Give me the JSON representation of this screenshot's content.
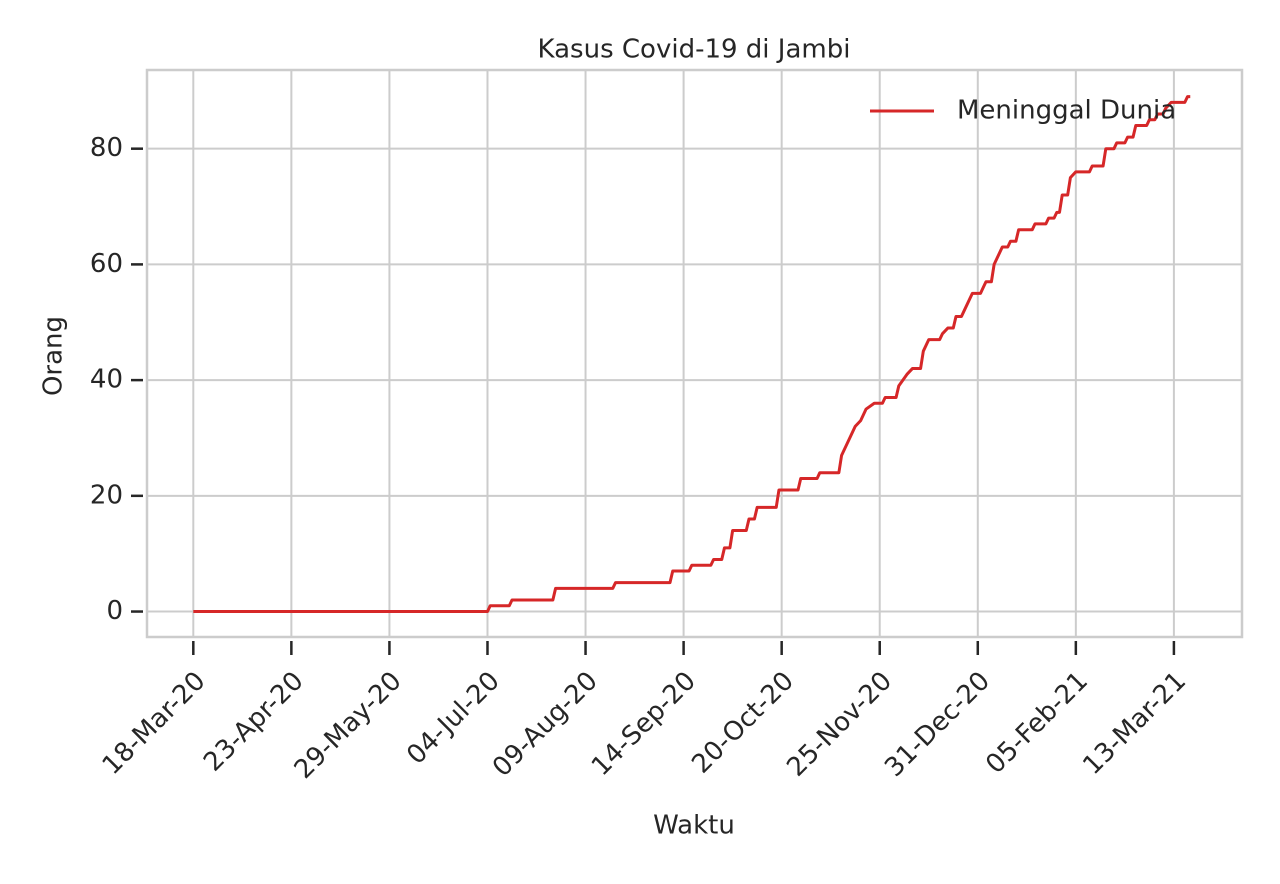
{
  "chart_data": {
    "type": "line",
    "title": "Kasus Covid-19 di Jambi",
    "xlabel": "Waktu",
    "ylabel": "Orang",
    "x": [
      "2020-03-18",
      "2020-07-04",
      "2020-07-05",
      "2020-07-12",
      "2020-07-13",
      "2020-07-28",
      "2020-07-29",
      "2020-08-19",
      "2020-08-20",
      "2020-09-09",
      "2020-09-10",
      "2020-09-16",
      "2020-09-17",
      "2020-09-24",
      "2020-09-25",
      "2020-09-28",
      "2020-09-29",
      "2020-10-01",
      "2020-10-02",
      "2020-10-07",
      "2020-10-08",
      "2020-10-10",
      "2020-10-11",
      "2020-10-18",
      "2020-10-19",
      "2020-10-26",
      "2020-10-27",
      "2020-11-02",
      "2020-11-03",
      "2020-11-10",
      "2020-11-11",
      "2020-11-14",
      "2020-11-16",
      "2020-11-18",
      "2020-11-20",
      "2020-11-23",
      "2020-11-26",
      "2020-11-27",
      "2020-12-01",
      "2020-12-02",
      "2020-12-05",
      "2020-12-07",
      "2020-12-10",
      "2020-12-11",
      "2020-12-13",
      "2020-12-17",
      "2020-12-18",
      "2020-12-20",
      "2020-12-22",
      "2020-12-23",
      "2020-12-25",
      "2020-12-26",
      "2020-12-29",
      "2021-01-01",
      "2021-01-02",
      "2021-01-03",
      "2021-01-05",
      "2021-01-06",
      "2021-01-09",
      "2021-01-11",
      "2021-01-12",
      "2021-01-14",
      "2021-01-15",
      "2021-01-20",
      "2021-01-21",
      "2021-01-25",
      "2021-01-26",
      "2021-01-28",
      "2021-01-29",
      "2021-01-30",
      "2021-01-31",
      "2021-02-02",
      "2021-02-03",
      "2021-02-05",
      "2021-02-10",
      "2021-02-11",
      "2021-02-15",
      "2021-02-16",
      "2021-02-19",
      "2021-02-20",
      "2021-02-23",
      "2021-02-24",
      "2021-02-26",
      "2021-02-27",
      "2021-03-03",
      "2021-03-04",
      "2021-03-06",
      "2021-03-07",
      "2021-03-09",
      "2021-03-10",
      "2021-03-12",
      "2021-03-17",
      "2021-03-18",
      "2021-03-19"
    ],
    "series": [
      {
        "name": "Meninggal Dunia",
        "color": "#d62728",
        "values": [
          0,
          0,
          1,
          1,
          2,
          2,
          4,
          4,
          5,
          5,
          7,
          7,
          8,
          8,
          9,
          9,
          11,
          11,
          14,
          14,
          16,
          16,
          18,
          18,
          21,
          21,
          23,
          23,
          24,
          24,
          27,
          30,
          32,
          33,
          35,
          36,
          36,
          37,
          37,
          39,
          41,
          42,
          42,
          45,
          47,
          47,
          48,
          49,
          49,
          51,
          51,
          52,
          55,
          55,
          56,
          57,
          57,
          60,
          63,
          63,
          64,
          64,
          66,
          66,
          67,
          67,
          68,
          68,
          69,
          69,
          72,
          72,
          75,
          76,
          76,
          77,
          77,
          80,
          80,
          81,
          81,
          82,
          82,
          84,
          84,
          85,
          85,
          86,
          86,
          87,
          88,
          88,
          89,
          89
        ]
      }
    ],
    "xlim": [
      "2020-03-01",
      "2021-04-07"
    ],
    "xticks": [
      {
        "value": "2020-03-18",
        "label": "18-Mar-20"
      },
      {
        "value": "2020-04-23",
        "label": "23-Apr-20"
      },
      {
        "value": "2020-05-29",
        "label": "29-May-20"
      },
      {
        "value": "2020-07-04",
        "label": "04-Jul-20"
      },
      {
        "value": "2020-08-09",
        "label": "09-Aug-20"
      },
      {
        "value": "2020-09-14",
        "label": "14-Sep-20"
      },
      {
        "value": "2020-10-20",
        "label": "20-Oct-20"
      },
      {
        "value": "2020-11-25",
        "label": "25-Nov-20"
      },
      {
        "value": "2020-12-31",
        "label": "31-Dec-20"
      },
      {
        "value": "2021-02-05",
        "label": "05-Feb-21"
      },
      {
        "value": "2021-03-13",
        "label": "13-Mar-21"
      }
    ],
    "ylim": [
      -4.4,
      93.6
    ],
    "yticks": [
      0,
      20,
      40,
      60,
      80
    ],
    "grid": true,
    "legend": "upper right"
  }
}
